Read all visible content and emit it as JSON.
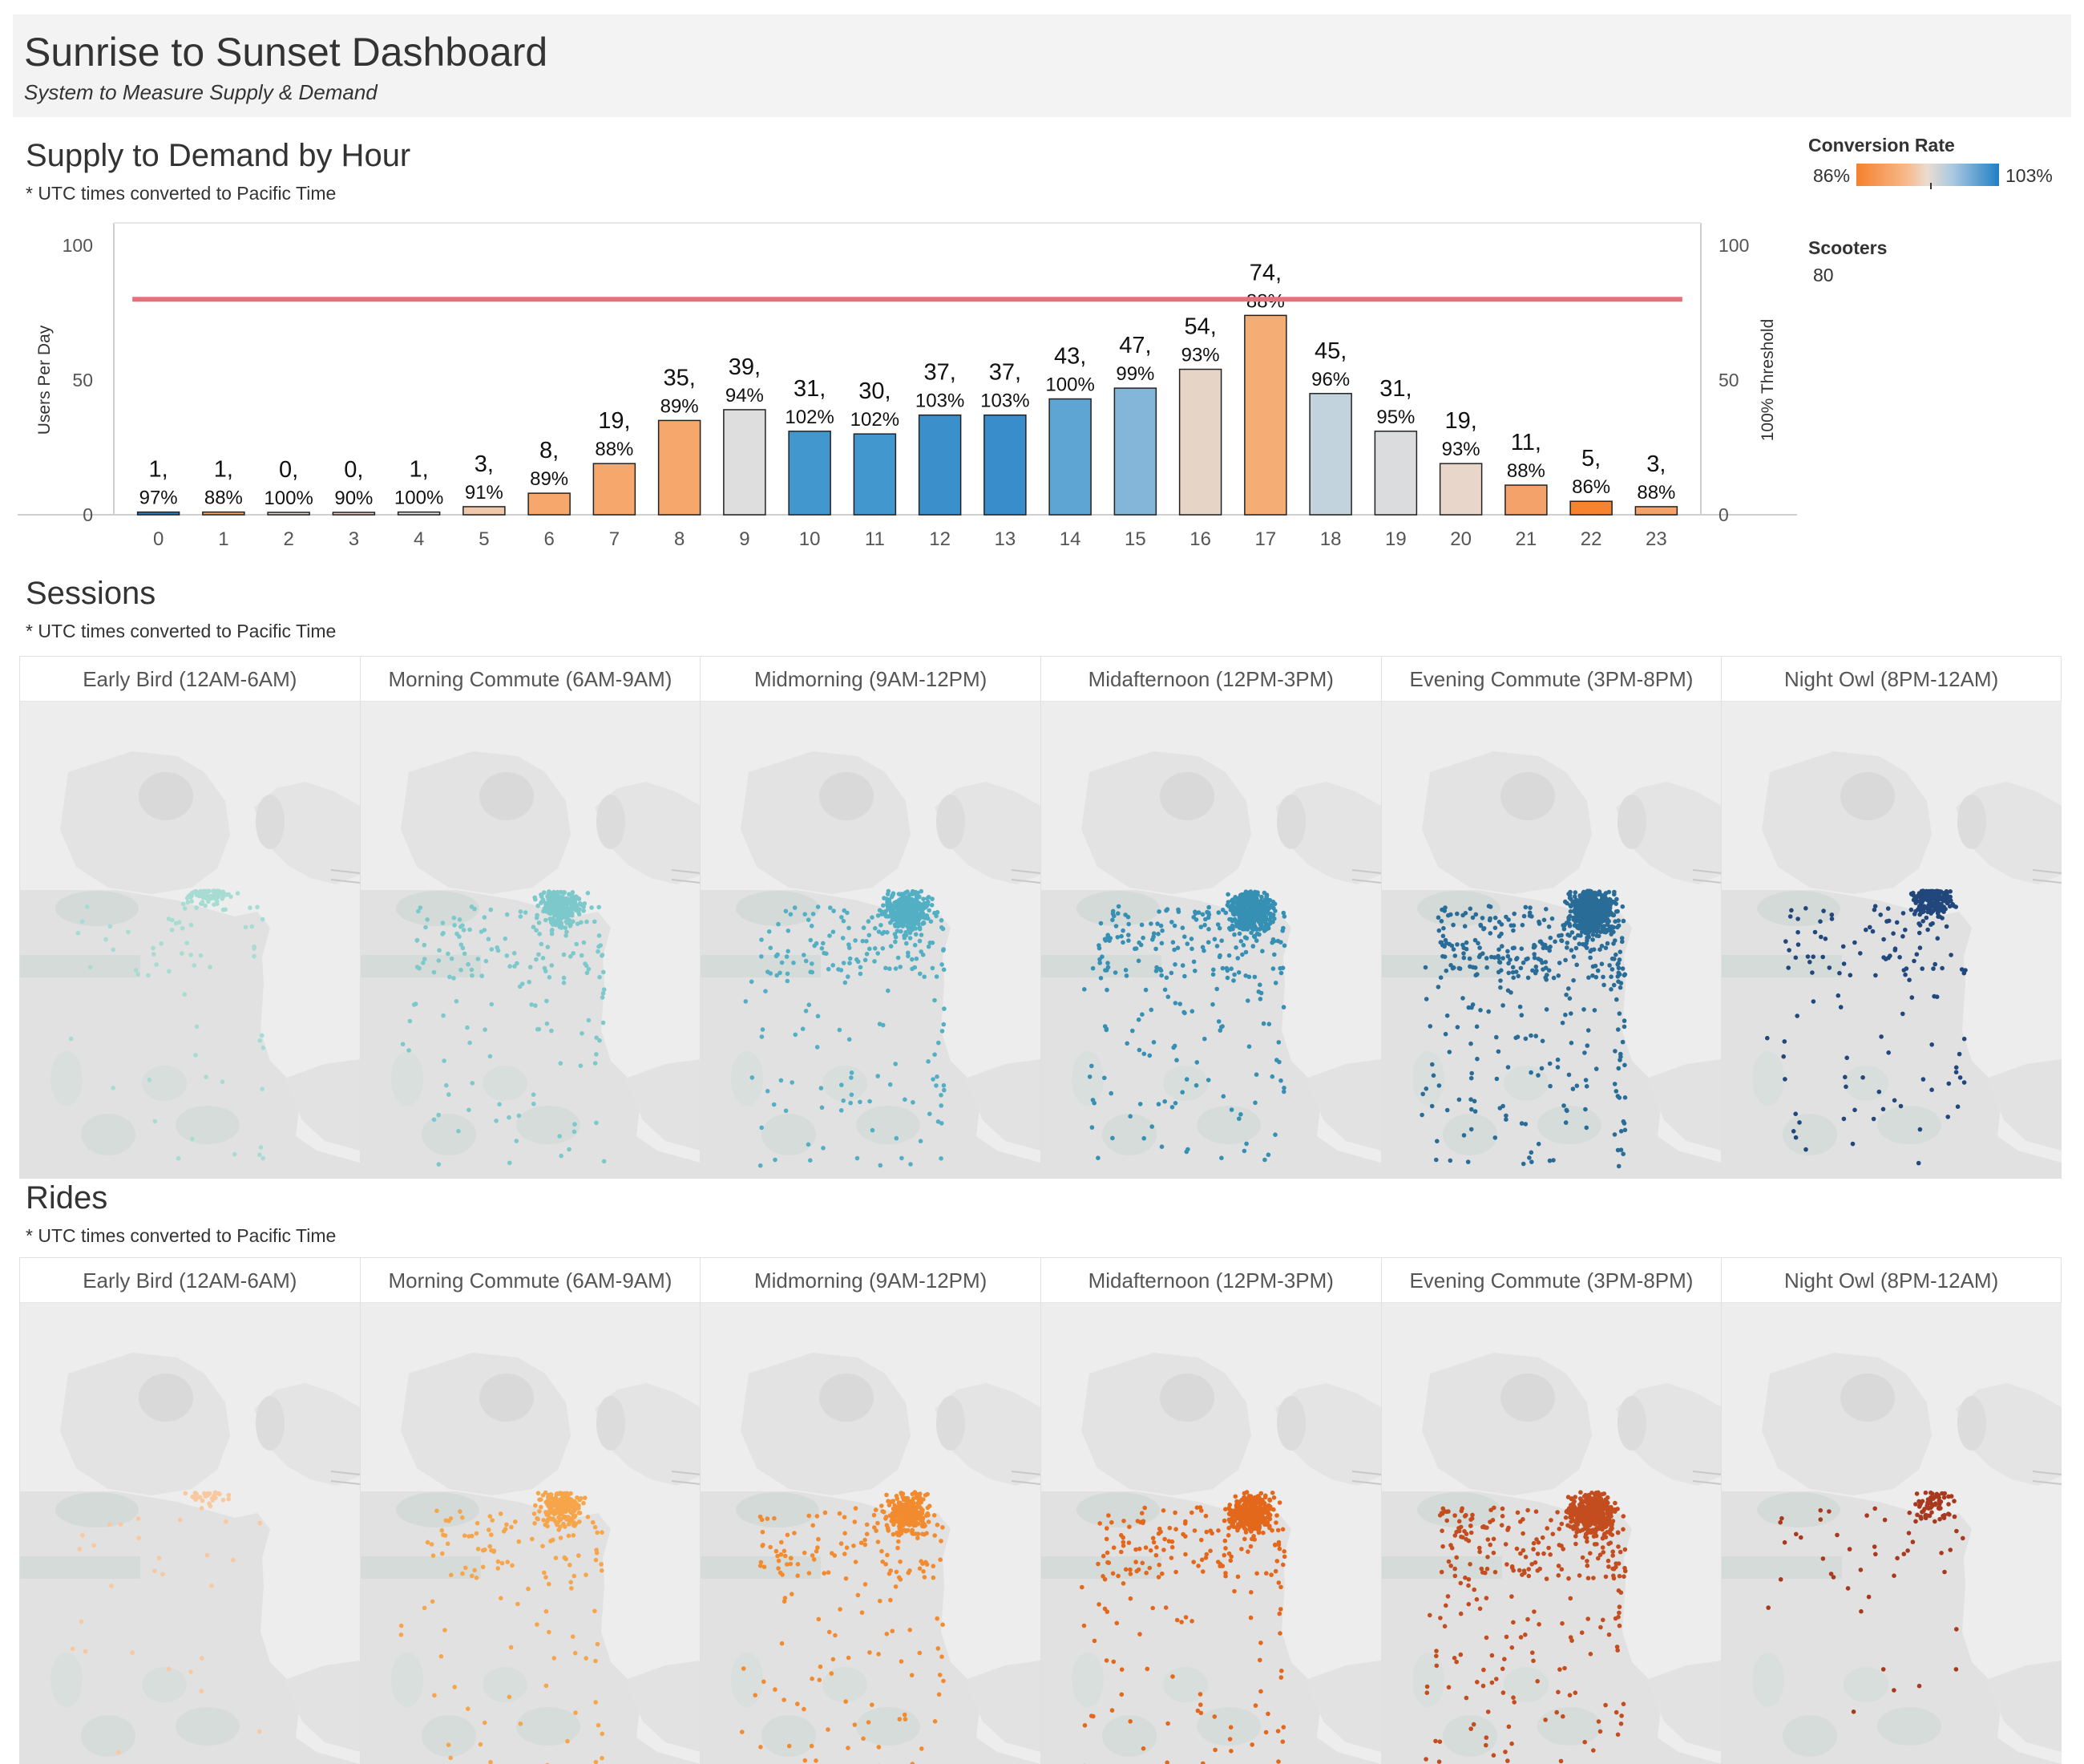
{
  "header": {
    "title": "Sunrise to Sunset Dashboard",
    "subtitle": "System to Measure Supply & Demand"
  },
  "supply": {
    "title": "Supply to Demand by Hour",
    "note": "* UTC times converted to Pacific Time"
  },
  "legend": {
    "conversion_title": "Conversion Rate",
    "conversion_min": "86%",
    "conversion_max": "103%",
    "scooters_title": "Scooters",
    "scooters_value": "80",
    "ramp_colors": [
      "#f5812c",
      "#f7b98a",
      "#e9dcd0",
      "#a8c8e0",
      "#1f7fc4"
    ]
  },
  "chart_data": {
    "type": "bar",
    "categories": [
      "0",
      "1",
      "2",
      "3",
      "4",
      "5",
      "6",
      "7",
      "8",
      "9",
      "10",
      "11",
      "12",
      "13",
      "14",
      "15",
      "16",
      "17",
      "18",
      "19",
      "20",
      "21",
      "22",
      "23"
    ],
    "values": [
      1,
      1,
      0,
      0,
      1,
      3,
      8,
      19,
      35,
      39,
      31,
      30,
      37,
      37,
      43,
      47,
      54,
      74,
      45,
      31,
      19,
      11,
      5,
      3
    ],
    "conversion_rate": [
      "97%",
      "88%",
      "100%",
      "90%",
      "100%",
      "91%",
      "89%",
      "88%",
      "89%",
      "94%",
      "102%",
      "102%",
      "103%",
      "103%",
      "100%",
      "99%",
      "93%",
      "88%",
      "96%",
      "95%",
      "93%",
      "88%",
      "86%",
      "88%"
    ],
    "value_labels": [
      "1,",
      "1,",
      "0,",
      "0,",
      "1,",
      "3,",
      "8,",
      "19,",
      "35,",
      "39,",
      "31,",
      "30,",
      "37,",
      "37,",
      "43,",
      "47,",
      "54,",
      "74,",
      "45,",
      "31,",
      "19,",
      "11,",
      "5,",
      "3,"
    ],
    "ylabel": "Users Per Day",
    "ylabel_right": "100% Threshold",
    "ylim": [
      0,
      100
    ],
    "yticks": [
      "0",
      "50",
      "100"
    ],
    "threshold": 80,
    "bar_colors": [
      "#2b7fc0",
      "#f5a76c",
      "#e8dad0",
      "#ead5c8",
      "#e2e2e2",
      "#f0c7a8",
      "#f5a76c",
      "#f5a76c",
      "#f5a76c",
      "#dedede",
      "#4397cf",
      "#4397cf",
      "#3b8fcb",
      "#3a8dcb",
      "#5ea5d4",
      "#84b6da",
      "#e6d4c7",
      "#f5ad76",
      "#c3d3de",
      "#dadcde",
      "#e8d6ca",
      "#f5a26a",
      "#f5832f",
      "#f5a26a"
    ],
    "threshold_color": "#e8707a",
    "grid": false
  },
  "sessions": {
    "title": "Sessions",
    "note": "* UTC times converted to Pacific Time",
    "panels": [
      {
        "label": "Early Bird (12AM-6AM)",
        "color": "#a6dcd2"
      },
      {
        "label": "Morning Commute (6AM-9AM)",
        "color": "#7cc8cb"
      },
      {
        "label": "Midmorning (9AM-12PM)",
        "color": "#53afc4"
      },
      {
        "label": "Midafternoon (12PM-3PM)",
        "color": "#3690b4"
      },
      {
        "label": "Evening Commute (3PM-8PM)",
        "color": "#2a6c98"
      },
      {
        "label": "Night Owl (8PM-12AM)",
        "color": "#22477c"
      }
    ]
  },
  "rides": {
    "title": "Rides",
    "note": "* UTC times converted to Pacific Time",
    "panels": [
      {
        "label": "Early Bird (12AM-6AM)",
        "color": "#f9c89e"
      },
      {
        "label": "Morning Commute (6AM-9AM)",
        "color": "#f6a54a"
      },
      {
        "label": "Midmorning (9AM-12PM)",
        "color": "#f28b2f"
      },
      {
        "label": "Midafternoon (12PM-3PM)",
        "color": "#e4681c"
      },
      {
        "label": "Evening Commute (3PM-8PM)",
        "color": "#c44d1f"
      },
      {
        "label": "Night Owl (8PM-12AM)",
        "color": "#a8391f"
      }
    ]
  }
}
